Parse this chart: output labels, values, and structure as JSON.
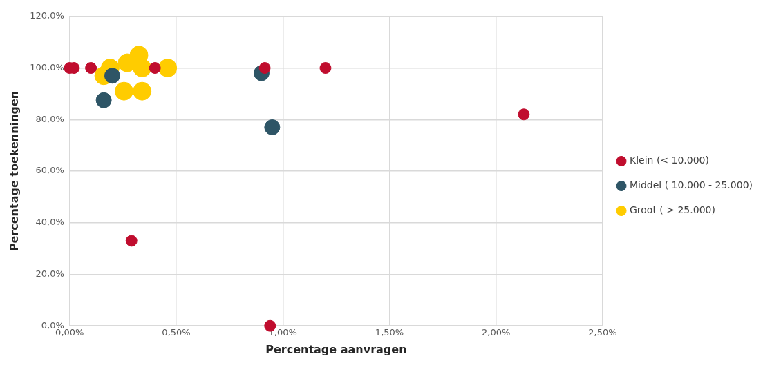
{
  "chart_data": {
    "type": "scatter",
    "xlabel": "Percentage aanvragen",
    "ylabel": "Percentage toekenningen",
    "xlim": [
      0,
      2.5
    ],
    "xticks": [
      {
        "value": 0,
        "label": "0,00%"
      },
      {
        "value": 0.5,
        "label": "0,50%"
      },
      {
        "value": 1,
        "label": "1,00%"
      },
      {
        "value": 1.5,
        "label": "1,50%"
      },
      {
        "value": 2,
        "label": "2,00%"
      },
      {
        "value": 2.5,
        "label": "2,50%"
      }
    ],
    "ylim": [
      0,
      120
    ],
    "yticks": [
      {
        "value": 0,
        "label": "0,0%"
      },
      {
        "value": 20,
        "label": "20,0%"
      },
      {
        "value": 40,
        "label": "40,0%"
      },
      {
        "value": 60,
        "label": "60,0%"
      },
      {
        "value": 80,
        "label": "80,0%"
      },
      {
        "value": 100,
        "label": "100,0%"
      },
      {
        "value": 120,
        "label": "120,0%"
      }
    ],
    "grid": true,
    "legend": "right",
    "marker": "circle",
    "series": [
      {
        "name": "Klein (< 10.000)",
        "color": "#c00d2e",
        "x": [
          0,
          0.02,
          0.1,
          0.4,
          0.915,
          1.2,
          2.13,
          0.29,
          0.94
        ],
        "values": [
          100,
          100,
          100,
          100,
          100,
          100,
          82,
          33,
          0
        ]
      },
      {
        "name": "Middel ( 10.000 - 25.000)",
        "color": "#2e5566",
        "x": [
          0.16,
          0.2,
          0.9,
          0.95
        ],
        "values": [
          87.5,
          97,
          98,
          77
        ]
      },
      {
        "name": "Groot ( > 25.000)",
        "color": "#ffcc00",
        "x": [
          0.16,
          0.19,
          0.27,
          0.325,
          0.34,
          0.46,
          0.255,
          0.34
        ],
        "values": [
          97,
          100,
          102,
          105,
          100,
          100,
          91,
          91
        ]
      }
    ]
  }
}
